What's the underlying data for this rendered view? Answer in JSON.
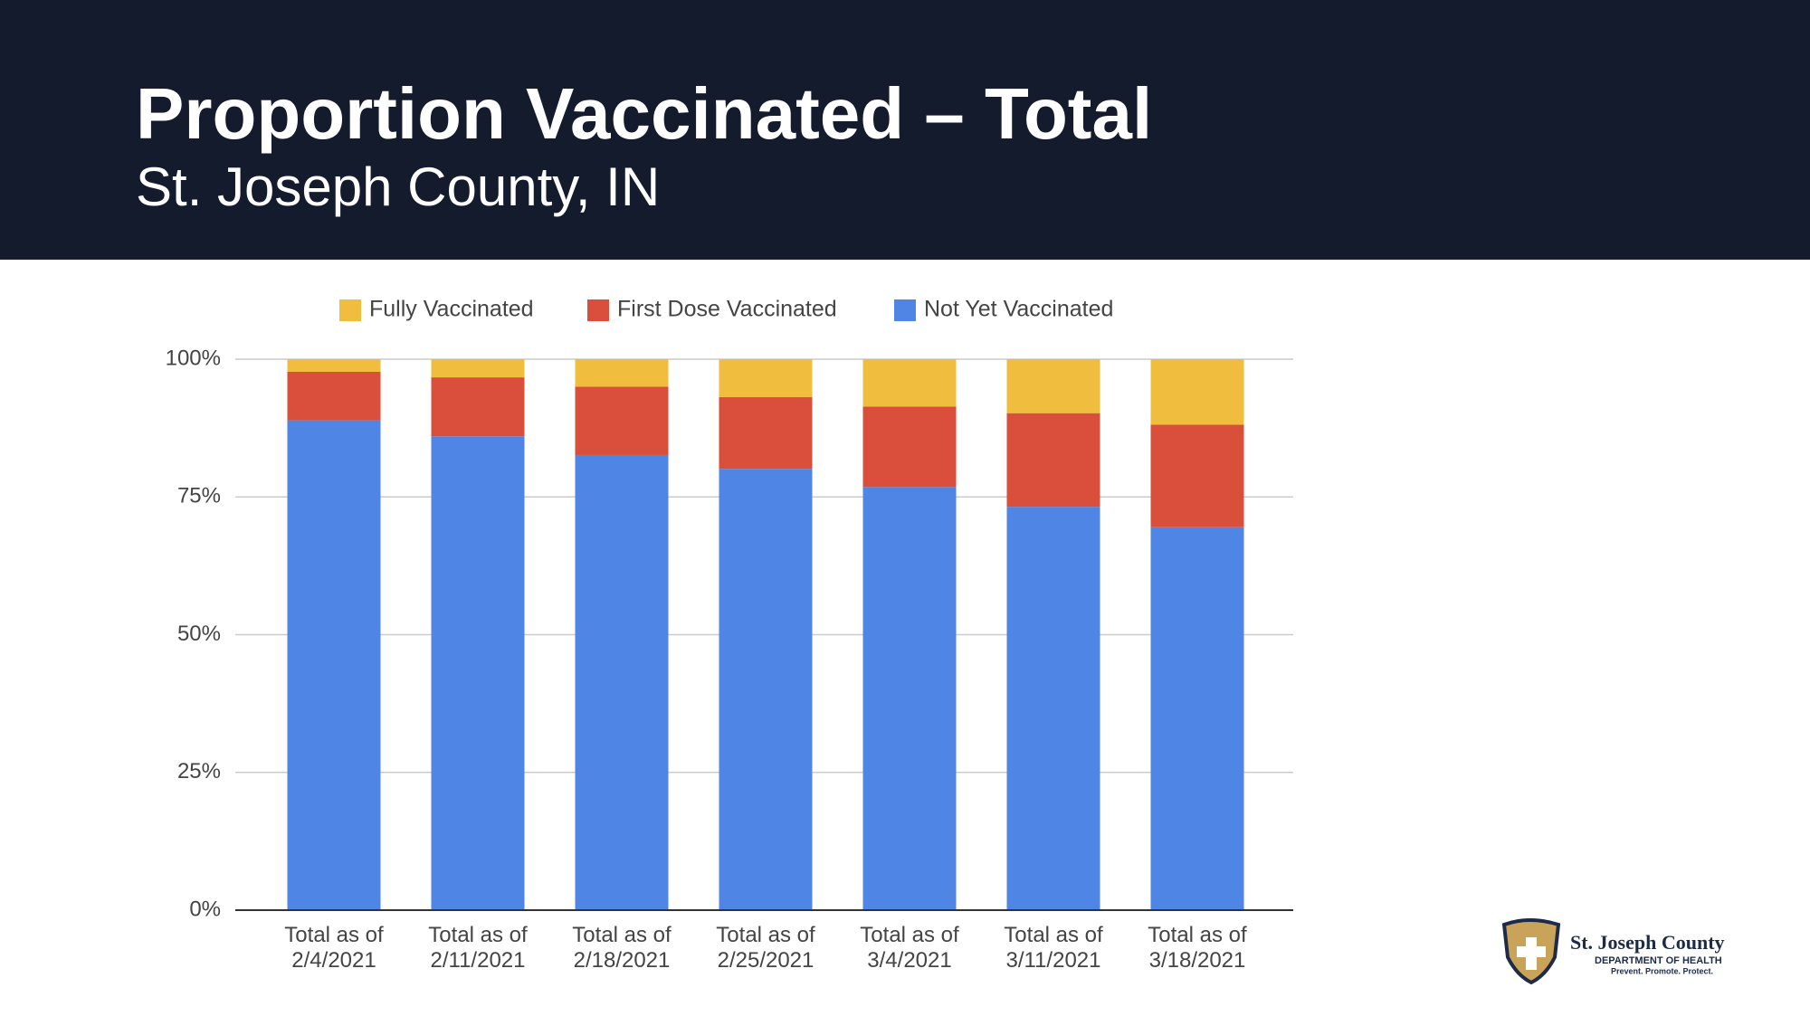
{
  "header": {
    "title": "Proportion Vaccinated – Total",
    "subtitle": "St. Joseph County, IN"
  },
  "chart_data": {
    "type": "stacked-bar",
    "categories": [
      "Total as of 2/4/2021",
      "Total as of 2/11/2021",
      "Total as of 2/18/2021",
      "Total as of 2/25/2021",
      "Total as of 3/4/2021",
      "Total as of 3/11/2021",
      "Total as of 3/18/2021"
    ],
    "series": [
      {
        "name": "Fully Vaccinated",
        "color": "#f0bd3e",
        "values": [
          2.3,
          3.3,
          5.0,
          6.9,
          8.6,
          9.8,
          11.9
        ]
      },
      {
        "name": "First Dose Vaccinated",
        "color": "#da4f3b",
        "values": [
          8.8,
          10.7,
          12.4,
          13.0,
          14.6,
          17.0,
          18.6
        ]
      },
      {
        "name": "Not Yet Vaccinated",
        "color": "#4f86e6",
        "values": [
          88.9,
          86.0,
          82.6,
          80.1,
          76.8,
          73.2,
          69.5
        ]
      }
    ],
    "ylim": [
      0,
      100
    ],
    "yticks": [
      {
        "value": 0,
        "label": "0%"
      },
      {
        "value": 25,
        "label": "25%"
      },
      {
        "value": 50,
        "label": "50%"
      },
      {
        "value": 75,
        "label": "75%"
      },
      {
        "value": 100,
        "label": "100%"
      }
    ],
    "grid": true,
    "legend": "top"
  },
  "logo": {
    "name": "St. Joseph County",
    "department": "Department of Health",
    "motto": "Prevent. Promote. Protect."
  }
}
